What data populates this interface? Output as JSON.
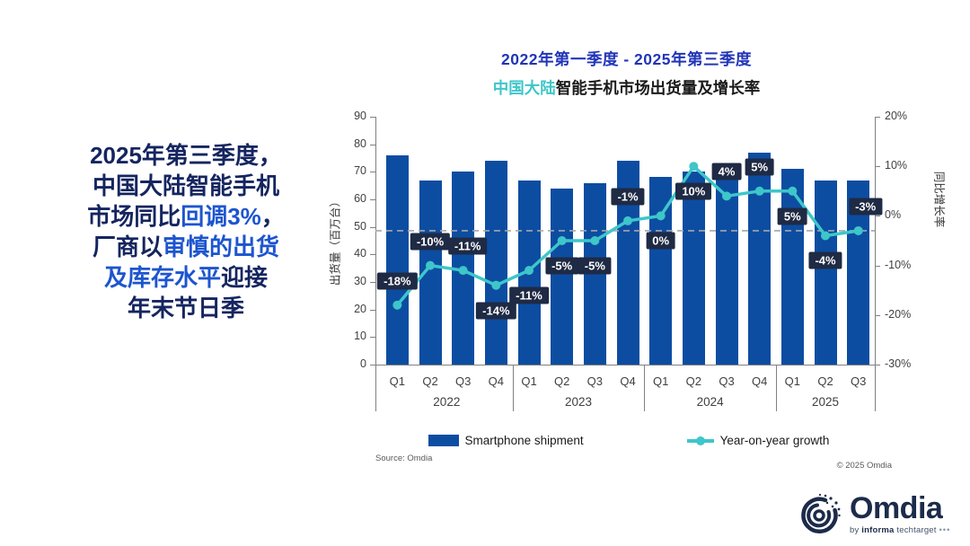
{
  "colors": {
    "bar_blue": "#0C4DA2",
    "teal": "#3EC6C9",
    "box_navy": "#1F2A44",
    "title_blue": "#2135B8",
    "navy": "#152560",
    "highlight_blue": "#1D55CF",
    "axis_gray": "#808080",
    "dashed_gray": "#A6A6A6"
  },
  "title": {
    "line1": "2022年第一季度 - 2025年第三季度",
    "line2_highlight": "中国大陆",
    "line2_rest": "智能手机市场出货量及增长率"
  },
  "summary": {
    "lines": [
      {
        "segments": [
          {
            "text": "2025年第三季度，",
            "highlight": false
          }
        ]
      },
      {
        "segments": [
          {
            "text": "中国大陆智能手机",
            "highlight": false
          }
        ]
      },
      {
        "segments": [
          {
            "text": "市场同比",
            "highlight": false
          },
          {
            "text": "回调3%",
            "highlight": true
          },
          {
            "text": "，",
            "highlight": false
          }
        ]
      },
      {
        "segments": [
          {
            "text": "厂商以",
            "highlight": false
          },
          {
            "text": "审慎的出货",
            "highlight": true
          }
        ]
      },
      {
        "segments": [
          {
            "text": "及库存水平",
            "highlight": true
          },
          {
            "text": "迎接",
            "highlight": false
          }
        ]
      },
      {
        "segments": [
          {
            "text": "年末节日季",
            "highlight": false
          }
        ]
      }
    ]
  },
  "chart_data": {
    "type": "bar",
    "categories": [
      "Q1",
      "Q2",
      "Q3",
      "Q4",
      "Q1",
      "Q2",
      "Q3",
      "Q4",
      "Q1",
      "Q2",
      "Q3",
      "Q4",
      "Q1",
      "Q2",
      "Q3"
    ],
    "year_groups": [
      {
        "label": "2022",
        "quarters": 4
      },
      {
        "label": "2023",
        "quarters": 4
      },
      {
        "label": "2024",
        "quarters": 4
      },
      {
        "label": "2025",
        "quarters": 3
      }
    ],
    "series": [
      {
        "name": "Smartphone shipment",
        "type": "bar",
        "values": [
          76,
          67,
          70,
          74,
          67,
          64,
          66,
          74,
          68,
          70,
          69,
          77,
          71,
          67,
          67
        ]
      },
      {
        "name": "Year-on-year growth",
        "type": "line",
        "unit": "%",
        "values": [
          -18,
          -10,
          -11,
          -14,
          -11,
          -5,
          -5,
          -1,
          0,
          10,
          4,
          5,
          5,
          -4,
          -3
        ],
        "labels": [
          "-18%",
          "-10%",
          "-11%",
          "-14%",
          "-11%",
          "-5%",
          "-5%",
          "-1%",
          "0%",
          "10%",
          "4%",
          "5%",
          "5%",
          "-4%",
          "-3%"
        ],
        "label_positions": [
          "above",
          "above",
          "above",
          "below",
          "below",
          "below",
          "below",
          "above",
          "below",
          "below",
          "above",
          "above",
          "below",
          "below",
          "above"
        ]
      }
    ],
    "left_axis": {
      "label": "出货量（百万台）",
      "min": 0,
      "max": 90,
      "step": 10
    },
    "right_axis": {
      "label": "同比增长率",
      "min": -30,
      "max": 20,
      "step": 10,
      "ticks": [
        "20%",
        "10%",
        "0%",
        "-10%",
        "-20%",
        "-30%"
      ],
      "tick_values": [
        20,
        10,
        0,
        -10,
        -20,
        -30
      ]
    },
    "reference_line": {
      "value": -3,
      "axis": "right",
      "style": "dashed"
    },
    "grid": false,
    "legend_position": "bottom"
  },
  "legend": {
    "items": [
      {
        "label": "Smartphone shipment",
        "marker": "bar-swatch"
      },
      {
        "label": "Year-on-year growth",
        "marker": "line-marker"
      }
    ]
  },
  "footer": {
    "source": "Source: Omdia",
    "copyright": "© 2025 Omdia"
  },
  "logo": {
    "name": "Omdia",
    "tagline_by": "by",
    "tagline_informa": "informa",
    "tagline_techtarget": "techtarget",
    "tagline_dots": "•••"
  }
}
